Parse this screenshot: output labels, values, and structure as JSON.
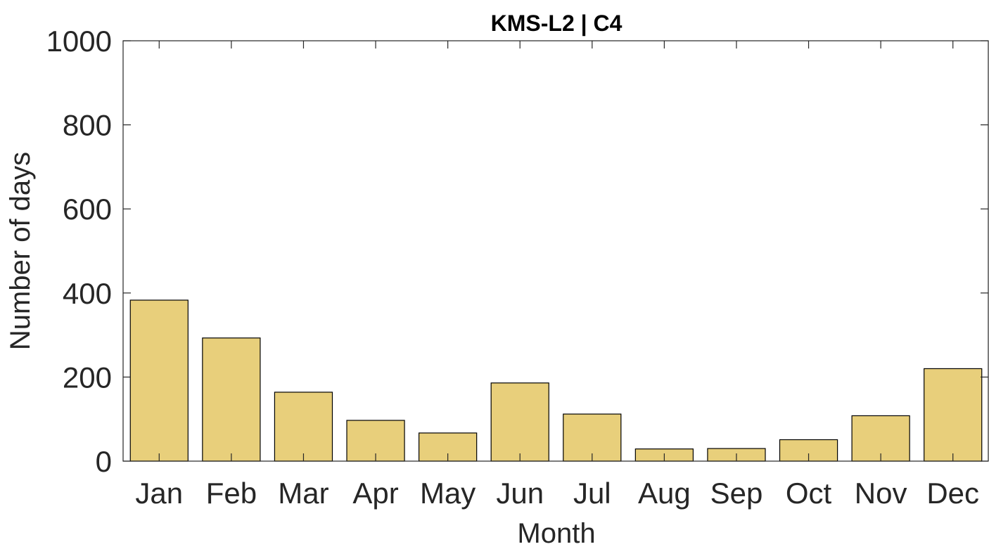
{
  "chart_data": {
    "type": "bar",
    "title": "KMS-L2 | C4",
    "xlabel": "Month",
    "ylabel": "Number of days",
    "categories": [
      "Jan",
      "Feb",
      "Mar",
      "Apr",
      "May",
      "Jun",
      "Jul",
      "Aug",
      "Sep",
      "Oct",
      "Nov",
      "Dec"
    ],
    "values": [
      383,
      293,
      164,
      97,
      67,
      186,
      112,
      29,
      30,
      51,
      108,
      220
    ],
    "ylim": [
      0,
      1000
    ],
    "yticks": [
      0,
      200,
      400,
      600,
      800,
      1000
    ],
    "ytick_labels": [
      "0",
      "200",
      "400",
      "600",
      "800",
      "1000"
    ],
    "grid": false,
    "bar_color": "#e8cf7b"
  }
}
